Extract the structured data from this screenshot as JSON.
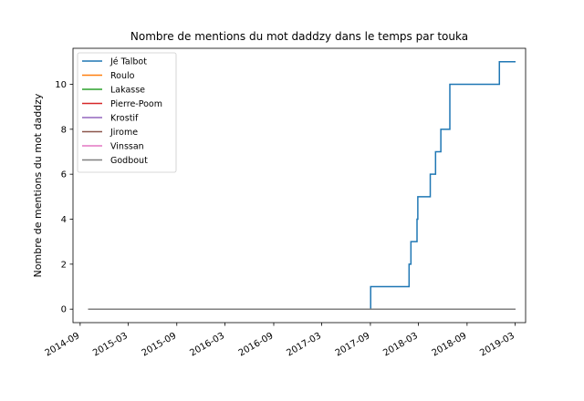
{
  "chart_data": {
    "type": "line",
    "title": "Nombre de mentions du mot daddzy dans le temps par touka",
    "xlabel": "",
    "ylabel": "Nombre de mentions du mot daddzy",
    "xlim": [
      "2014-08-05",
      "2019-04-10"
    ],
    "ylim": [
      -0.6,
      11.6
    ],
    "x_ticks": [
      "2014-09",
      "2015-03",
      "2015-09",
      "2016-03",
      "2016-09",
      "2017-03",
      "2017-09",
      "2018-03",
      "2018-09",
      "2019-03"
    ],
    "y_ticks": [
      0,
      2,
      4,
      6,
      8,
      10
    ],
    "grid": false,
    "legend_position": "top-left",
    "step": "post",
    "series": [
      {
        "name": "Jé Talbot",
        "color": "#1f77b4",
        "points": [
          [
            "2014-10-01",
            0
          ],
          [
            "2017-09-01",
            0
          ],
          [
            "2017-09-02",
            1
          ],
          [
            "2018-01-24",
            1
          ],
          [
            "2018-01-25",
            2
          ],
          [
            "2018-02-01",
            3
          ],
          [
            "2018-02-24",
            4
          ],
          [
            "2018-02-27",
            5
          ],
          [
            "2018-04-15",
            6
          ],
          [
            "2018-05-05",
            7
          ],
          [
            "2018-05-25",
            8
          ],
          [
            "2018-06-28",
            10
          ],
          [
            "2019-01-01",
            11
          ],
          [
            "2019-03-03",
            11
          ]
        ]
      },
      {
        "name": "Roulo",
        "color": "#ff7f0e",
        "points": [
          [
            "2014-10-01",
            0
          ],
          [
            "2019-03-03",
            0
          ]
        ]
      },
      {
        "name": "Lakasse",
        "color": "#2ca02c",
        "points": [
          [
            "2014-10-01",
            0
          ],
          [
            "2019-03-03",
            0
          ]
        ]
      },
      {
        "name": "Pierre-Poom",
        "color": "#d62728",
        "points": [
          [
            "2014-10-01",
            0
          ],
          [
            "2019-03-03",
            0
          ]
        ]
      },
      {
        "name": "Krostif",
        "color": "#9467bd",
        "points": [
          [
            "2014-10-01",
            0
          ],
          [
            "2019-03-03",
            0
          ]
        ]
      },
      {
        "name": "Jirome",
        "color": "#8c564b",
        "points": [
          [
            "2014-10-01",
            0
          ],
          [
            "2019-03-03",
            0
          ]
        ]
      },
      {
        "name": "Vinssan",
        "color": "#e377c2",
        "points": [
          [
            "2018-10-01",
            0
          ],
          [
            "2019-03-03",
            0
          ]
        ]
      },
      {
        "name": "Godbout",
        "color": "#7f7f7f",
        "points": [
          [
            "2014-10-01",
            0
          ],
          [
            "2019-03-03",
            0
          ]
        ]
      }
    ]
  }
}
